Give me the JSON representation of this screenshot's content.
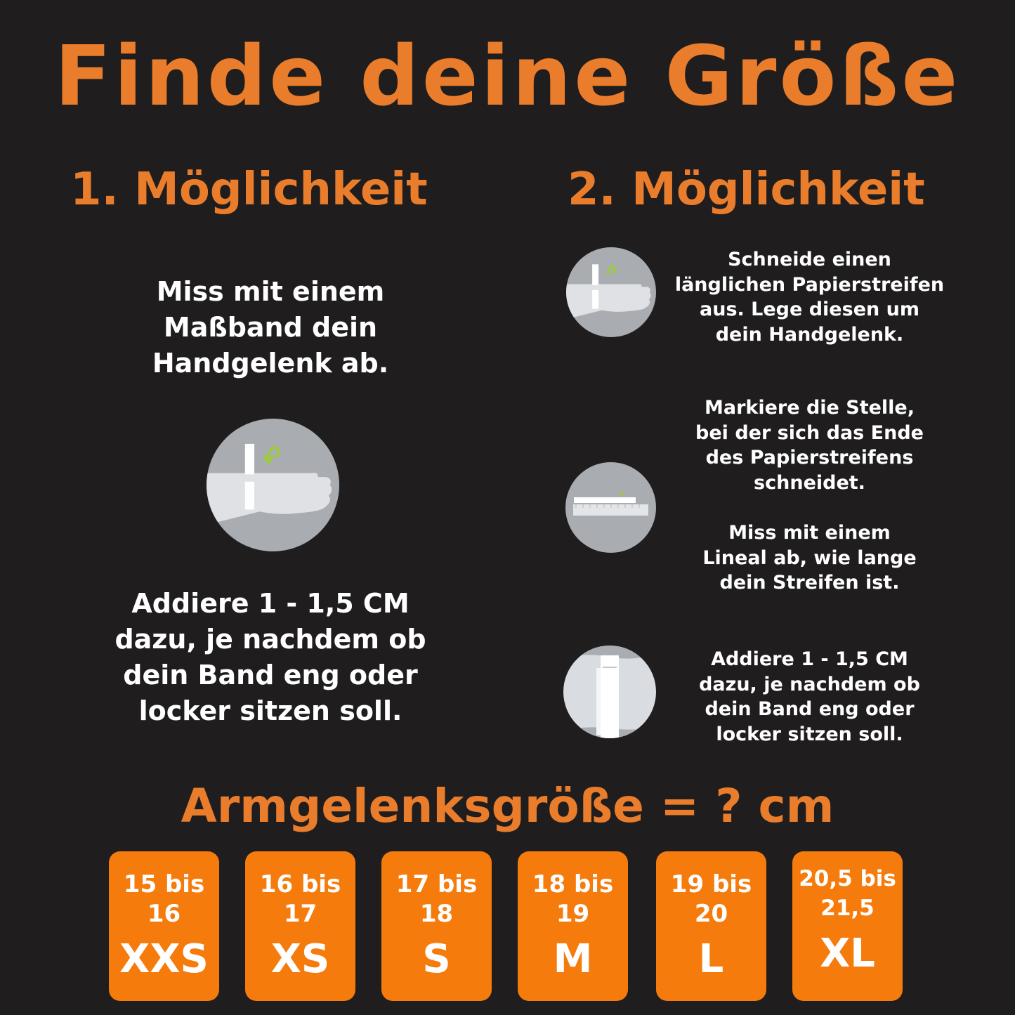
{
  "title": "Finde deine Größe",
  "option1": {
    "heading": "1. Möglichkeit",
    "step1": "Miss mit einem\nMaßband dein\nHandgelenk ab.",
    "icon": "wrist-tape-measure-icon",
    "step2": "Addiere 1 - 1,5 CM\ndazu, je nachdem ob\ndein Band eng oder\nlocker sitzen soll."
  },
  "option2": {
    "heading": "2. Möglichkeit",
    "steps": [
      {
        "text": "Schneide einen\nlänglichen Papierstreifen\naus. Lege diesen um\ndein Handgelenk.",
        "icon": "wrist-paper-strip-icon"
      },
      {
        "text": "Markiere die Stelle,\nbei der sich das Ende\ndes Papierstreifens\nschneidet.",
        "icon": "ruler-strip-icon"
      },
      {
        "text": "Miss mit einem\nLineal ab, wie lange\ndein Streifen ist."
      },
      {
        "text": "Addiere 1 - 1,5 CM\ndazu, je nachdem ob\ndein Band eng oder\nlocker sitzen soll.",
        "icon": "strip-overlap-icon"
      }
    ]
  },
  "size_heading": "Armgelenksgröße = ? cm",
  "sizes": [
    {
      "range": "15 bis\n16",
      "size": "XXS"
    },
    {
      "range": "16 bis\n17",
      "size": "XS"
    },
    {
      "range": "17 bis\n18",
      "size": "S"
    },
    {
      "range": "18 bis\n19",
      "size": "M"
    },
    {
      "range": "19 bis\n20",
      "size": "L"
    },
    {
      "range": "20,5 bis\n21,5",
      "size": "XL"
    }
  ],
  "colors": {
    "background": "#1f1d1e",
    "accent": "#e97d2c",
    "box": "#f57c0c",
    "icon_bg": "#a9adb2",
    "arrow": "#9ccc3a"
  }
}
